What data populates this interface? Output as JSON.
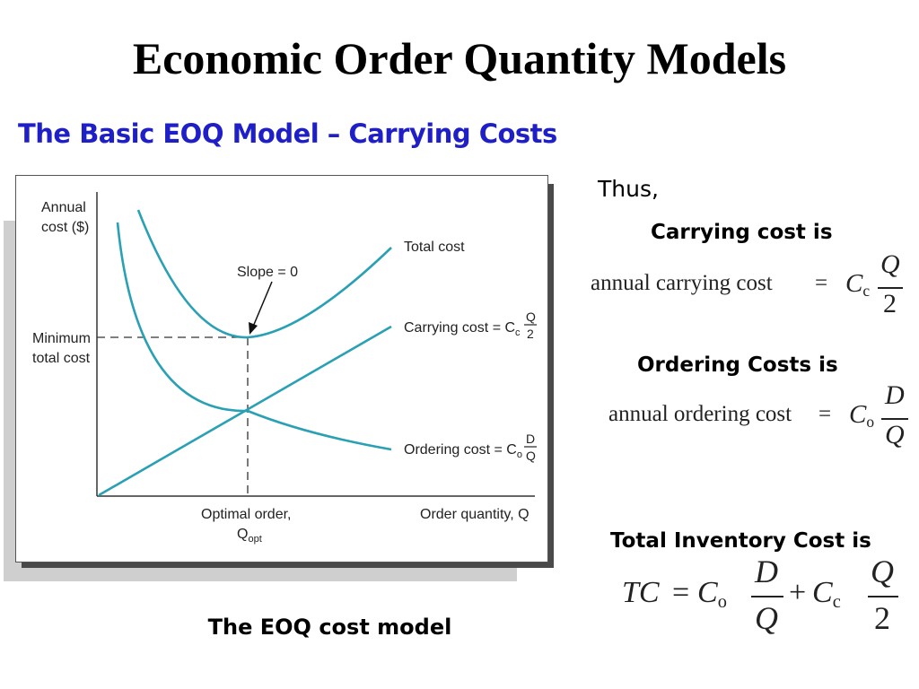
{
  "slide": {
    "title": "Economic Order Quantity Models",
    "subtitle": "The Basic EOQ Model – Carrying Costs",
    "caption": "The EOQ cost model"
  },
  "diagram": {
    "y_axis_label_line1": "Annual",
    "y_axis_label_line2": "cost ($)",
    "min_total_cost_line1": "Minimum",
    "min_total_cost_line2": "total cost",
    "slope_label": "Slope = 0",
    "total_cost_label": "Total cost",
    "carrying_cost_label": "Carrying cost = C",
    "carrying_cost_sub": "c",
    "carrying_frac_num": "Q",
    "carrying_frac_den": "2",
    "ordering_cost_label": "Ordering cost = C",
    "ordering_cost_sub": "o",
    "ordering_frac_num": "D",
    "ordering_frac_den": "Q",
    "optimal_order_line1": "Optimal order,",
    "optimal_order_q": "Q",
    "optimal_order_sub": "opt",
    "x_axis_label": "Order quantity, Q",
    "curve_color": "#2aa0b4"
  },
  "right": {
    "thus": "Thus,",
    "carrying_heading": "Carrying cost is",
    "carrying_formula": {
      "lhs": "annual carrying cost",
      "eq": "=",
      "coef": "C",
      "coef_sub": "c",
      "num": "Q",
      "den": "2"
    },
    "ordering_heading": "Ordering Costs is",
    "ordering_formula": {
      "lhs": "annual ordering cost",
      "eq": "=",
      "coef": "C",
      "coef_sub": "o",
      "num": "D",
      "den": "Q"
    },
    "total_heading": "Total Inventory Cost is",
    "total_formula": {
      "lhs": "TC",
      "eq": "=",
      "c1": "C",
      "c1_sub": "o",
      "num1": "D",
      "den1": "Q",
      "plus": "+",
      "c2": "C",
      "c2_sub": "c",
      "num2": "Q",
      "den2": "2"
    }
  }
}
